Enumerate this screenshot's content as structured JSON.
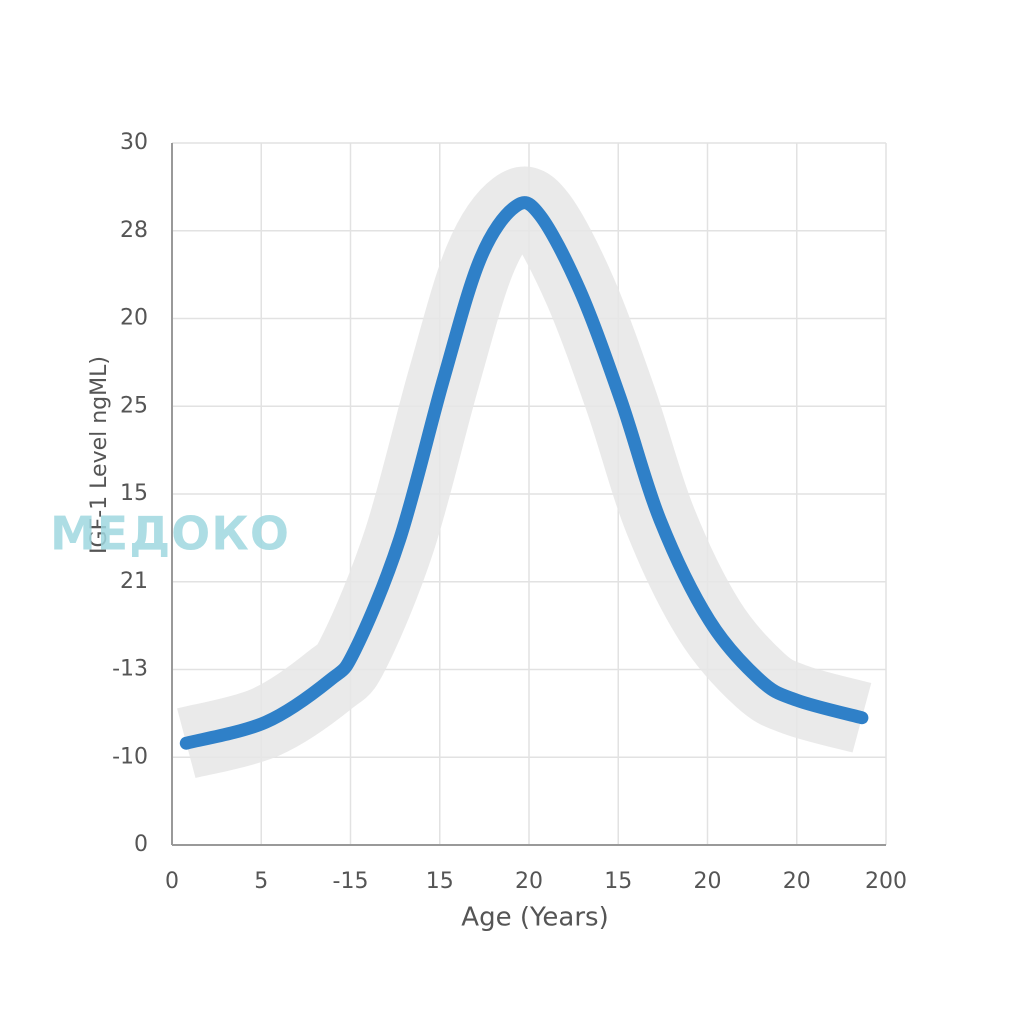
{
  "chart_data": {
    "type": "line",
    "xlabel": "Age (Years)",
    "ylabel": "IGF-1 Level ngML)",
    "watermark": "МЕДОКО",
    "xlim": [
      0,
      8
    ],
    "ylim": [
      0,
      8
    ],
    "xticks": [
      {
        "value": 0,
        "label": "0"
      },
      {
        "value": 1,
        "label": "5"
      },
      {
        "value": 2,
        "label": "-15"
      },
      {
        "value": 3,
        "label": "15"
      },
      {
        "value": 4,
        "label": "20"
      },
      {
        "value": 5,
        "label": "15"
      },
      {
        "value": 6,
        "label": "20"
      },
      {
        "value": 7,
        "label": "20"
      },
      {
        "value": 8,
        "label": "200"
      }
    ],
    "yticks": [
      {
        "value": 0,
        "label": "0"
      },
      {
        "value": 1,
        "label": "-10"
      },
      {
        "value": 2,
        "label": "-13"
      },
      {
        "value": 3,
        "label": "21"
      },
      {
        "value": 4,
        "label": "15"
      },
      {
        "value": 5,
        "label": "25"
      },
      {
        "value": 6,
        "label": "20"
      },
      {
        "value": 7,
        "label": "28"
      },
      {
        "value": 8,
        "label": "30"
      }
    ],
    "grid": true,
    "series": [
      {
        "color": "#2f80c8",
        "band_color": "#e6e6e6",
        "x": [
          0.16,
          1.05,
          1.77,
          2.05,
          2.55,
          3.04,
          3.45,
          3.84,
          4.12,
          4.57,
          5.03,
          5.47,
          6.02,
          6.59,
          7.0,
          7.73
        ],
        "values": [
          1.16,
          1.4,
          1.88,
          2.22,
          3.48,
          5.3,
          6.67,
          7.27,
          7.18,
          6.32,
          5.07,
          3.7,
          2.56,
          1.88,
          1.65,
          1.45
        ]
      }
    ]
  }
}
